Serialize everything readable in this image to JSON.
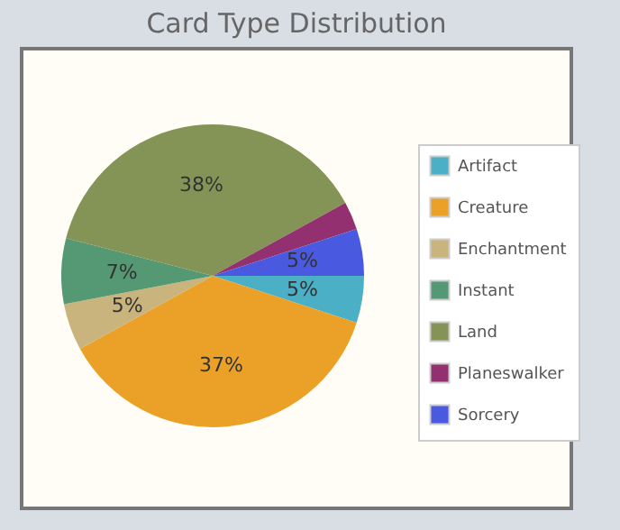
{
  "chart_data": {
    "type": "pie",
    "title": "Card Type Distribution",
    "categories": [
      "Artifact",
      "Creature",
      "Enchantment",
      "Instant",
      "Land",
      "Planeswalker",
      "Sorcery"
    ],
    "values": [
      5,
      37,
      5,
      7,
      38,
      3,
      5
    ],
    "value_labels": [
      "5%",
      "37%",
      "5%",
      "7%",
      "38%",
      null,
      "5%"
    ],
    "colors": [
      "#4bafc6",
      "#eba128",
      "#c8b47c",
      "#559874",
      "#849456",
      "#93306f",
      "#4a5ae0"
    ],
    "legend": "right"
  }
}
